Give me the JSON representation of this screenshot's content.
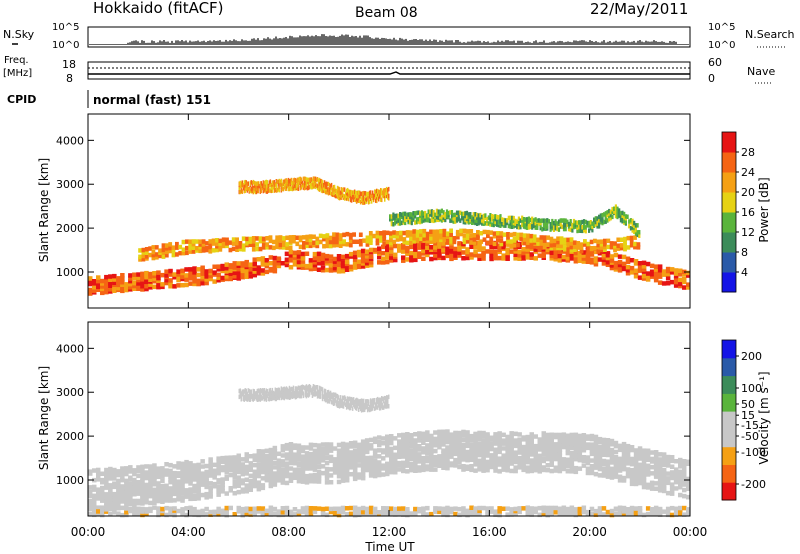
{
  "header": {
    "title": "Hokkaido (fitACF)",
    "beam": "Beam 08",
    "date": "22/May/2011"
  },
  "top_panels": {
    "nsky": {
      "label": "N.Sky",
      "ticks": [
        "10^5",
        "10^0"
      ]
    },
    "nsearch": {
      "label": "N.Search",
      "ticks": [
        "10^5",
        "10^0"
      ]
    },
    "freq": {
      "label_line1": "Freq.",
      "label_line2": "[MHz]",
      "ticks": [
        "18",
        "8"
      ]
    },
    "nave": {
      "label": "Nave",
      "ticks": [
        "60",
        "0"
      ]
    },
    "cpid": {
      "label": "CPID",
      "value": "normal (fast) 151"
    }
  },
  "colors": {
    "power": [
      "#1414e6",
      "#2a5aa8",
      "#3c8c5a",
      "#5ab43c",
      "#e6d214",
      "#f5a014",
      "#f56414",
      "#e61414"
    ],
    "velocity": [
      "#e61414",
      "#f56414",
      "#f5a014",
      "#c8c8c8",
      "#c8c8c8",
      "#5ab43c",
      "#3c8c5a",
      "#2a5aa8",
      "#1414e6"
    ]
  },
  "chart_data": [
    {
      "type": "heatmap",
      "name": "power",
      "title": "",
      "xlabel": "Time UT",
      "ylabel": "Slant Range [km]",
      "x_ticks": [
        "00:00",
        "04:00",
        "08:00",
        "12:00",
        "16:00",
        "20:00",
        "00:00"
      ],
      "y_ticks": [
        1000,
        2000,
        3000,
        4000
      ],
      "xlim": [
        0,
        24
      ],
      "ylim": [
        180,
        4600
      ],
      "colorbar": {
        "label": "Power [dB]",
        "ticks": [
          4,
          8,
          12,
          16,
          20,
          24,
          28
        ],
        "range": [
          0,
          32
        ]
      },
      "echo_bands": [
        {
          "t": [
            0,
            2,
            4,
            6,
            8,
            10,
            12,
            14,
            16,
            18,
            20,
            22,
            24
          ],
          "center": [
            700,
            800,
            900,
            1050,
            1300,
            1200,
            1450,
            1500,
            1500,
            1500,
            1400,
            1050,
            800
          ],
          "width": 400,
          "value": 26
        },
        {
          "t": [
            2,
            4,
            6,
            8,
            10,
            12,
            14,
            16,
            18,
            20,
            22
          ],
          "center": [
            1400,
            1600,
            1650,
            1700,
            1750,
            1800,
            1850,
            1800,
            1700,
            1600,
            1700
          ],
          "width": 300,
          "value": 22
        },
        {
          "t": [
            6,
            7,
            8,
            9,
            10,
            11,
            12
          ],
          "center": [
            2950,
            2950,
            3000,
            3050,
            2800,
            2700,
            2800
          ],
          "width": 250,
          "value": 22
        },
        {
          "t": [
            12,
            14,
            16,
            18,
            20,
            21,
            22
          ],
          "center": [
            2200,
            2300,
            2200,
            2100,
            2050,
            2400,
            1900
          ],
          "width": 250,
          "value": 14
        }
      ]
    },
    {
      "type": "heatmap",
      "name": "velocity",
      "title": "",
      "xlabel": "Time UT",
      "ylabel": "Slant Range [km]",
      "x_ticks": [
        "00:00",
        "04:00",
        "08:00",
        "12:00",
        "16:00",
        "20:00",
        "00:00"
      ],
      "y_ticks": [
        1000,
        2000,
        3000,
        4000
      ],
      "xlim": [
        0,
        24
      ],
      "ylim": [
        180,
        4600
      ],
      "colorbar": {
        "label": "Velocity [m s⁻¹]",
        "ticks": [
          200,
          100,
          50,
          15,
          -15,
          -50,
          -100,
          -200
        ],
        "range": [
          -250,
          250
        ]
      },
      "echo_bands": [
        {
          "t": [
            0,
            2,
            4,
            6,
            8,
            10,
            12,
            14,
            16,
            18,
            20,
            22,
            24
          ],
          "center": [
            800,
            900,
            1000,
            1150,
            1400,
            1400,
            1600,
            1700,
            1650,
            1650,
            1600,
            1300,
            1000
          ],
          "width": 900,
          "value": 0
        },
        {
          "t": [
            6,
            7,
            8,
            9,
            10,
            11,
            12
          ],
          "center": [
            2950,
            2950,
            3000,
            3050,
            2800,
            2700,
            2800
          ],
          "width": 250,
          "value": -60
        },
        {
          "t": [
            0,
            4,
            8,
            12,
            16,
            20,
            24
          ],
          "center": [
            300,
            300,
            300,
            300,
            300,
            300,
            300
          ],
          "width": 200,
          "value": -70
        }
      ]
    }
  ]
}
